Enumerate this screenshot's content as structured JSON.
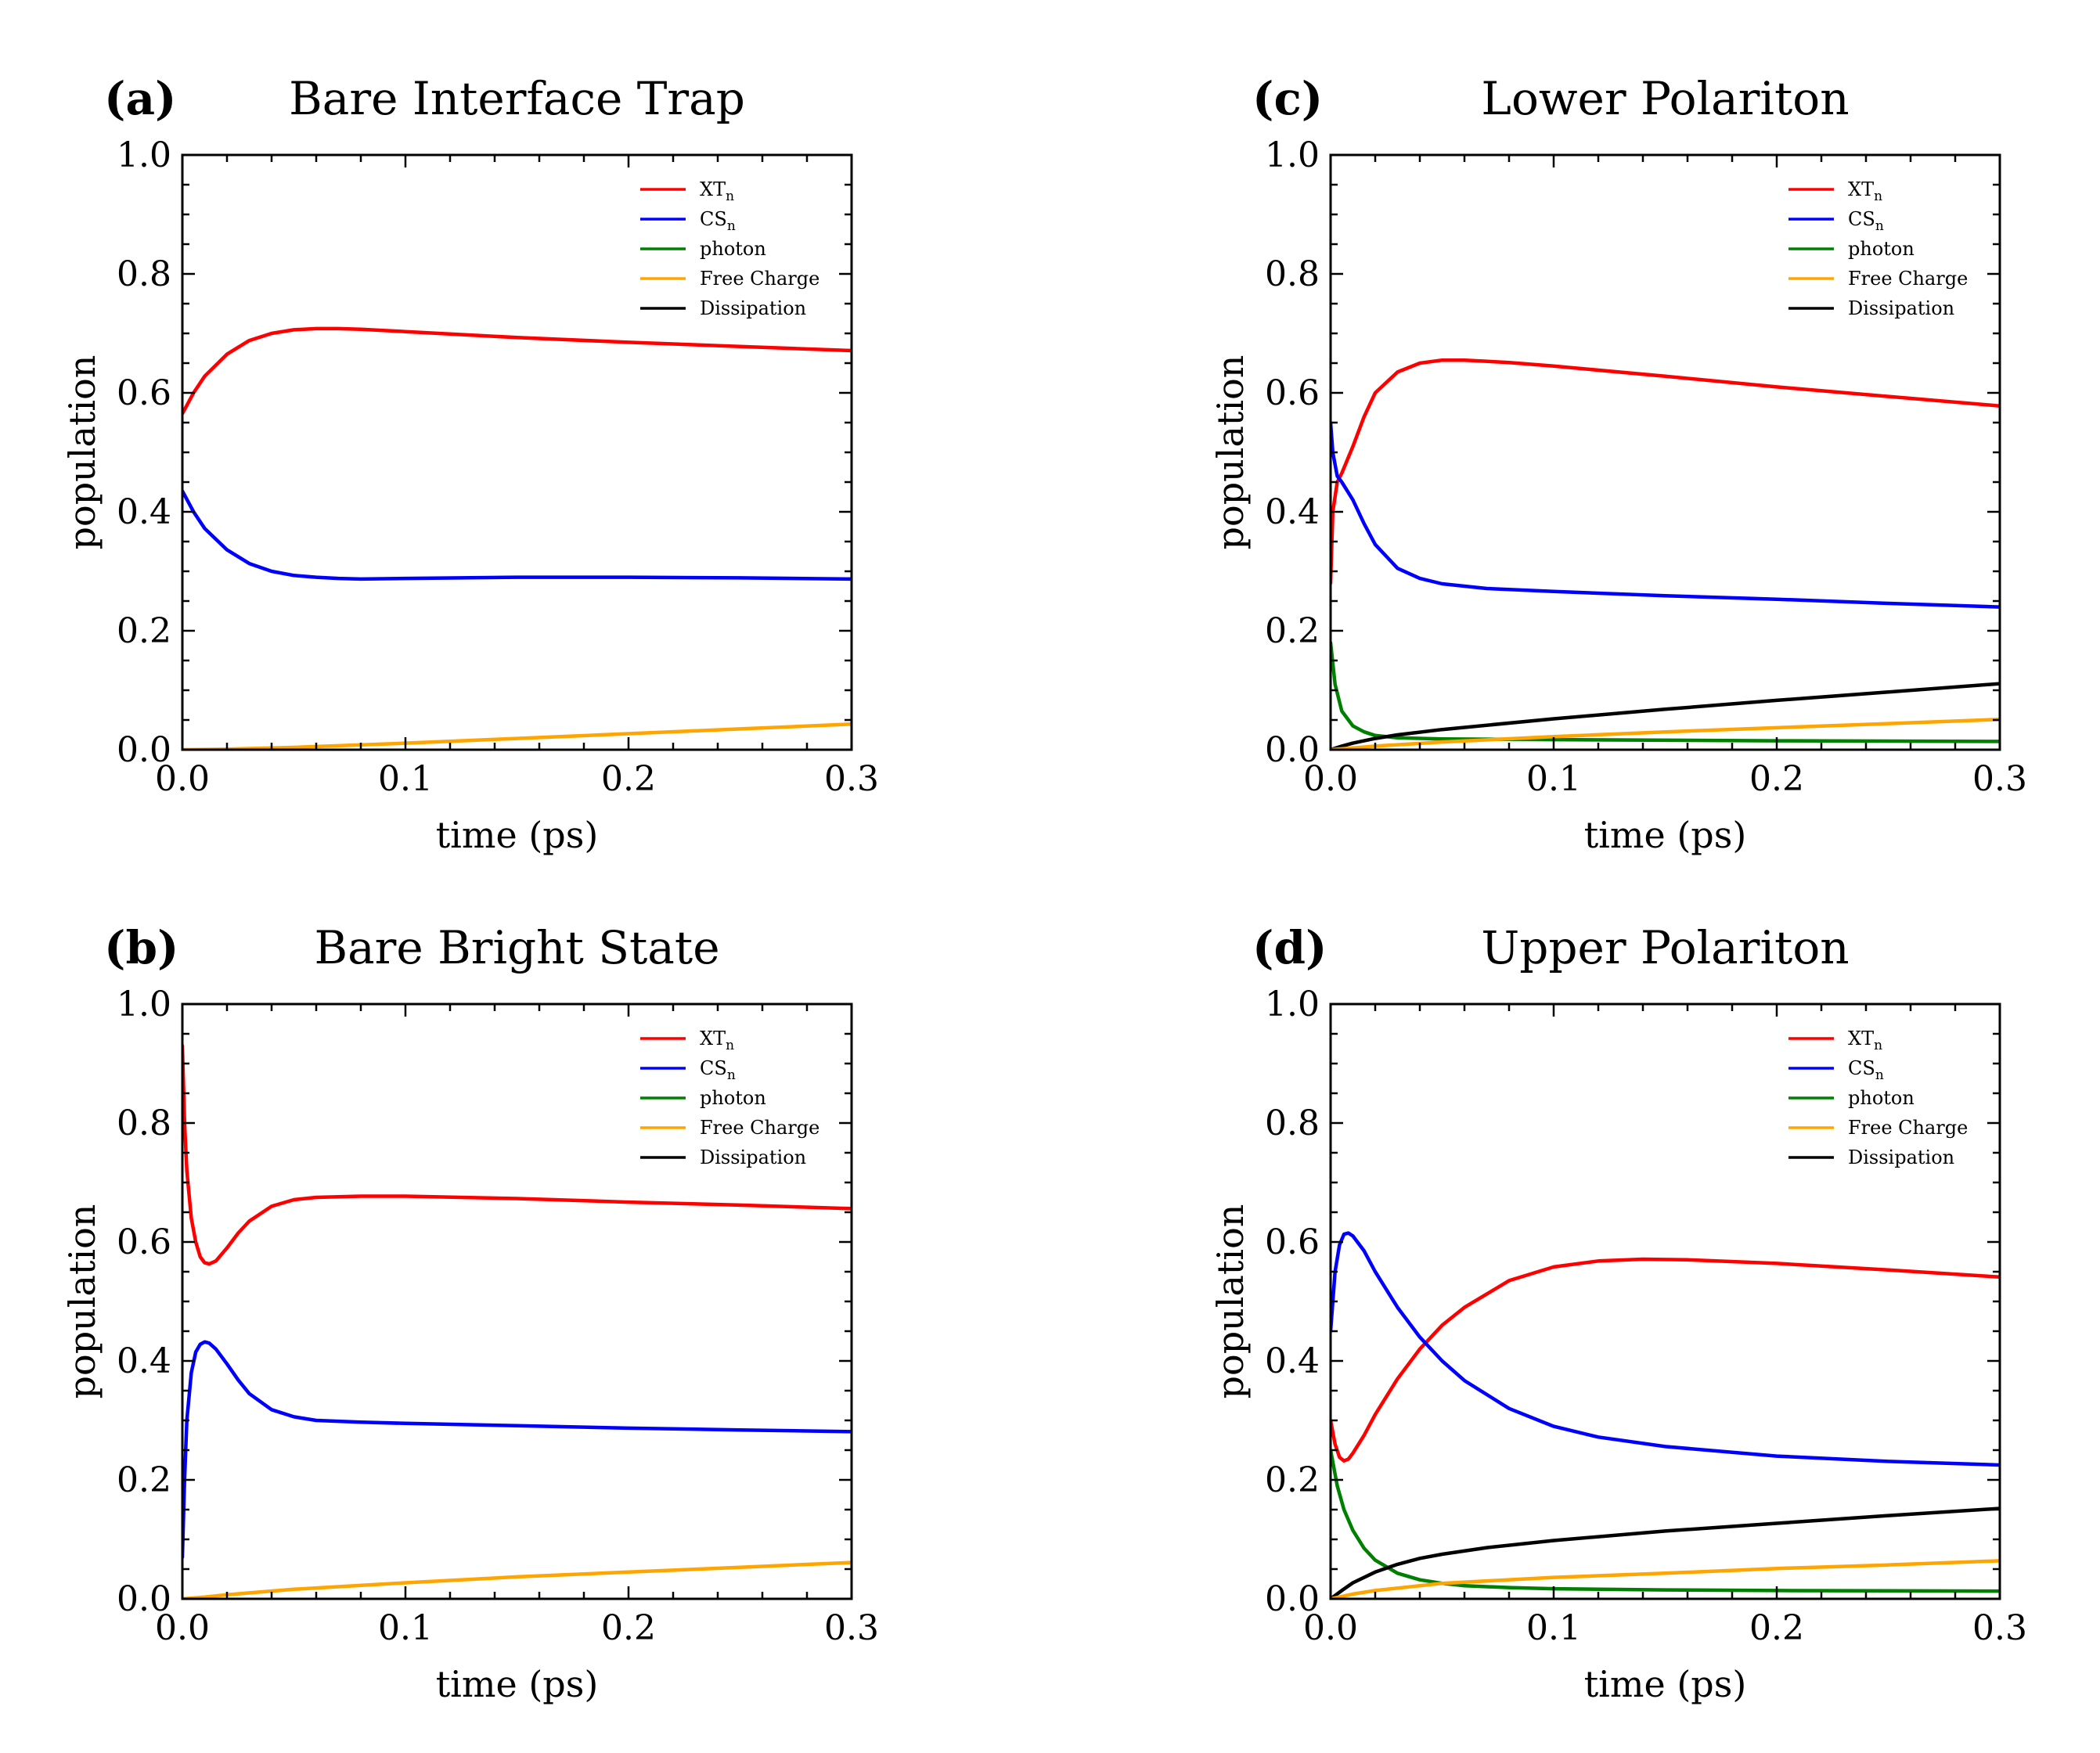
{
  "figure": {
    "legend_items": [
      {
        "key": "XT",
        "label": "XT",
        "sub": "n",
        "color": "#ff0000"
      },
      {
        "key": "CS",
        "label": "CS",
        "sub": "n",
        "color": "#0000ff"
      },
      {
        "key": "photon",
        "label": "photon",
        "sub": "",
        "color": "#008000"
      },
      {
        "key": "free",
        "label": "Free Charge",
        "sub": "",
        "color": "#ffa500"
      },
      {
        "key": "diss",
        "label": "Dissipation",
        "sub": "",
        "color": "#000000"
      }
    ]
  },
  "chart_data": [
    {
      "id": "a",
      "panel_label": "(a)",
      "type": "line",
      "title": "Bare Interface Trap",
      "xlabel": "time (ps)",
      "ylabel": "population",
      "xlim": [
        0,
        0.3
      ],
      "ylim": [
        0,
        1
      ],
      "xticks": [
        "0.0",
        "0.1",
        "0.2",
        "0.3"
      ],
      "yticks": [
        "0.0",
        "0.2",
        "0.4",
        "0.6",
        "0.8",
        "1.0"
      ],
      "grid": false,
      "legend": "top-right",
      "series": [
        {
          "key": "XT",
          "x": [
            0,
            0.005,
            0.01,
            0.02,
            0.03,
            0.04,
            0.05,
            0.06,
            0.07,
            0.08,
            0.1,
            0.15,
            0.2,
            0.25,
            0.3
          ],
          "y": [
            0.565,
            0.6,
            0.628,
            0.665,
            0.688,
            0.7,
            0.706,
            0.708,
            0.708,
            0.707,
            0.703,
            0.693,
            0.685,
            0.678,
            0.671
          ]
        },
        {
          "key": "CS",
          "x": [
            0,
            0.005,
            0.01,
            0.02,
            0.03,
            0.04,
            0.05,
            0.06,
            0.07,
            0.08,
            0.1,
            0.15,
            0.2,
            0.25,
            0.3
          ],
          "y": [
            0.435,
            0.4,
            0.372,
            0.336,
            0.313,
            0.3,
            0.293,
            0.29,
            0.288,
            0.287,
            0.288,
            0.29,
            0.29,
            0.289,
            0.287
          ]
        },
        {
          "key": "free",
          "x": [
            0,
            0.02,
            0.05,
            0.1,
            0.15,
            0.2,
            0.25,
            0.3
          ],
          "y": [
            0,
            0.001,
            0.004,
            0.011,
            0.019,
            0.027,
            0.035,
            0.043
          ]
        }
      ]
    },
    {
      "id": "c",
      "panel_label": "(c)",
      "type": "line",
      "title": "Lower Polariton",
      "xlabel": "time (ps)",
      "ylabel": "population",
      "xlim": [
        0,
        0.3
      ],
      "ylim": [
        0,
        1
      ],
      "xticks": [
        "0.0",
        "0.1",
        "0.2",
        "0.3"
      ],
      "yticks": [
        "0.0",
        "0.2",
        "0.4",
        "0.6",
        "0.8",
        "1.0"
      ],
      "grid": false,
      "legend": "top-right",
      "series": [
        {
          "key": "XT",
          "x": [
            0,
            0.001,
            0.003,
            0.005,
            0.01,
            0.015,
            0.02,
            0.03,
            0.04,
            0.05,
            0.06,
            0.08,
            0.1,
            0.15,
            0.2,
            0.25,
            0.3
          ],
          "y": [
            0.28,
            0.4,
            0.45,
            0.465,
            0.51,
            0.56,
            0.6,
            0.635,
            0.65,
            0.655,
            0.655,
            0.651,
            0.645,
            0.628,
            0.61,
            0.594,
            0.578
          ]
        },
        {
          "key": "CS",
          "x": [
            0,
            0.001,
            0.003,
            0.005,
            0.01,
            0.015,
            0.02,
            0.03,
            0.04,
            0.05,
            0.07,
            0.1,
            0.15,
            0.2,
            0.25,
            0.3
          ],
          "y": [
            0.55,
            0.5,
            0.46,
            0.45,
            0.42,
            0.38,
            0.345,
            0.305,
            0.288,
            0.279,
            0.271,
            0.266,
            0.259,
            0.253,
            0.246,
            0.24
          ]
        },
        {
          "key": "photon",
          "x": [
            0,
            0.002,
            0.005,
            0.01,
            0.015,
            0.02,
            0.03,
            0.05,
            0.1,
            0.2,
            0.3
          ],
          "y": [
            0.18,
            0.11,
            0.065,
            0.04,
            0.03,
            0.024,
            0.02,
            0.018,
            0.017,
            0.015,
            0.014
          ]
        },
        {
          "key": "diss",
          "x": [
            0,
            0.005,
            0.01,
            0.02,
            0.03,
            0.05,
            0.1,
            0.15,
            0.2,
            0.25,
            0.3
          ],
          "y": [
            0,
            0.006,
            0.011,
            0.019,
            0.025,
            0.034,
            0.052,
            0.068,
            0.083,
            0.097,
            0.111
          ]
        },
        {
          "key": "free",
          "x": [
            0,
            0.01,
            0.02,
            0.05,
            0.1,
            0.15,
            0.2,
            0.25,
            0.3
          ],
          "y": [
            0,
            0.003,
            0.006,
            0.013,
            0.022,
            0.03,
            0.037,
            0.044,
            0.051
          ]
        }
      ]
    },
    {
      "id": "b",
      "panel_label": "(b)",
      "type": "line",
      "title": "Bare Bright State",
      "xlabel": "time (ps)",
      "ylabel": "population",
      "xlim": [
        0,
        0.3
      ],
      "ylim": [
        0,
        1
      ],
      "xticks": [
        "0.0",
        "0.1",
        "0.2",
        "0.3"
      ],
      "yticks": [
        "0.0",
        "0.2",
        "0.4",
        "0.6",
        "0.8",
        "1.0"
      ],
      "grid": false,
      "legend": "top-right",
      "series": [
        {
          "key": "XT",
          "x": [
            0,
            0.001,
            0.002,
            0.004,
            0.006,
            0.008,
            0.01,
            0.012,
            0.015,
            0.02,
            0.025,
            0.03,
            0.04,
            0.05,
            0.06,
            0.08,
            0.1,
            0.15,
            0.2,
            0.25,
            0.3
          ],
          "y": [
            0.93,
            0.8,
            0.72,
            0.64,
            0.6,
            0.575,
            0.565,
            0.563,
            0.568,
            0.59,
            0.615,
            0.635,
            0.66,
            0.671,
            0.675,
            0.677,
            0.677,
            0.673,
            0.667,
            0.662,
            0.656
          ]
        },
        {
          "key": "CS",
          "x": [
            0,
            0.001,
            0.002,
            0.004,
            0.006,
            0.008,
            0.01,
            0.012,
            0.015,
            0.02,
            0.025,
            0.03,
            0.04,
            0.05,
            0.06,
            0.08,
            0.1,
            0.15,
            0.2,
            0.25,
            0.3
          ],
          "y": [
            0.07,
            0.2,
            0.3,
            0.38,
            0.415,
            0.428,
            0.432,
            0.43,
            0.42,
            0.395,
            0.368,
            0.345,
            0.318,
            0.306,
            0.3,
            0.297,
            0.295,
            0.291,
            0.287,
            0.284,
            0.281
          ]
        },
        {
          "key": "free",
          "x": [
            0,
            0.01,
            0.02,
            0.05,
            0.1,
            0.15,
            0.2,
            0.25,
            0.3
          ],
          "y": [
            0,
            0.003,
            0.007,
            0.016,
            0.027,
            0.037,
            0.045,
            0.053,
            0.061
          ]
        }
      ]
    },
    {
      "id": "d",
      "panel_label": "(d)",
      "type": "line",
      "title": "Upper Polariton",
      "xlabel": "time (ps)",
      "ylabel": "population",
      "xlim": [
        0,
        0.3
      ],
      "ylim": [
        0,
        1
      ],
      "xticks": [
        "0.0",
        "0.1",
        "0.2",
        "0.3"
      ],
      "yticks": [
        "0.0",
        "0.2",
        "0.4",
        "0.6",
        "0.8",
        "1.0"
      ],
      "grid": false,
      "legend": "top-right",
      "series": [
        {
          "key": "XT",
          "x": [
            0,
            0.002,
            0.004,
            0.006,
            0.008,
            0.01,
            0.015,
            0.02,
            0.03,
            0.04,
            0.05,
            0.06,
            0.08,
            0.1,
            0.12,
            0.14,
            0.16,
            0.2,
            0.25,
            0.3
          ],
          "y": [
            0.3,
            0.26,
            0.238,
            0.232,
            0.235,
            0.245,
            0.275,
            0.31,
            0.37,
            0.42,
            0.46,
            0.49,
            0.535,
            0.558,
            0.568,
            0.571,
            0.57,
            0.564,
            0.553,
            0.541
          ]
        },
        {
          "key": "CS",
          "x": [
            0,
            0.002,
            0.004,
            0.006,
            0.008,
            0.01,
            0.015,
            0.02,
            0.03,
            0.04,
            0.05,
            0.06,
            0.08,
            0.1,
            0.12,
            0.15,
            0.2,
            0.25,
            0.3
          ],
          "y": [
            0.45,
            0.55,
            0.595,
            0.613,
            0.615,
            0.61,
            0.585,
            0.55,
            0.49,
            0.44,
            0.4,
            0.367,
            0.32,
            0.29,
            0.272,
            0.256,
            0.24,
            0.231,
            0.225
          ]
        },
        {
          "key": "photon",
          "x": [
            0,
            0.003,
            0.006,
            0.01,
            0.015,
            0.02,
            0.03,
            0.04,
            0.05,
            0.06,
            0.08,
            0.1,
            0.15,
            0.2,
            0.3
          ],
          "y": [
            0.25,
            0.19,
            0.15,
            0.115,
            0.085,
            0.065,
            0.043,
            0.032,
            0.026,
            0.022,
            0.019,
            0.017,
            0.015,
            0.014,
            0.013
          ]
        },
        {
          "key": "diss",
          "x": [
            0,
            0.005,
            0.01,
            0.02,
            0.03,
            0.04,
            0.05,
            0.07,
            0.1,
            0.15,
            0.2,
            0.25,
            0.3
          ],
          "y": [
            0,
            0.014,
            0.027,
            0.045,
            0.058,
            0.068,
            0.075,
            0.086,
            0.098,
            0.114,
            0.127,
            0.14,
            0.152
          ]
        },
        {
          "key": "free",
          "x": [
            0,
            0.01,
            0.02,
            0.05,
            0.1,
            0.15,
            0.2,
            0.25,
            0.3
          ],
          "y": [
            0,
            0.008,
            0.014,
            0.026,
            0.036,
            0.043,
            0.051,
            0.057,
            0.064
          ]
        }
      ]
    }
  ]
}
